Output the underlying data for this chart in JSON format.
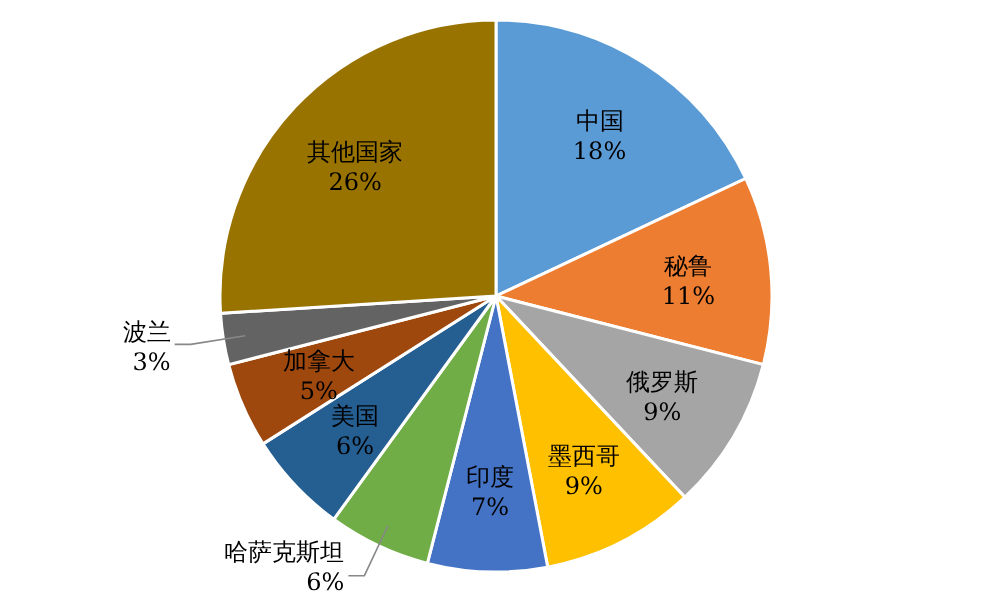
{
  "chart_data": {
    "type": "pie",
    "categories": [
      "中国",
      "秘鲁",
      "俄罗斯",
      "墨西哥",
      "印度",
      "哈萨克斯坦",
      "美国",
      "加拿大",
      "波兰",
      "其他国家"
    ],
    "values": [
      18,
      11,
      9,
      9,
      7,
      6,
      6,
      5,
      3,
      26
    ],
    "colors": [
      "#5b9bd5",
      "#ed7d31",
      "#a5a5a5",
      "#ffc000",
      "#4472c4",
      "#70ad47",
      "#255e91",
      "#9e480e",
      "#636363",
      "#997300"
    ],
    "value_labels": [
      "18%",
      "11%",
      "9%",
      "9%",
      "7%",
      "6%",
      "6%",
      "5%",
      "3%",
      "26%"
    ]
  }
}
